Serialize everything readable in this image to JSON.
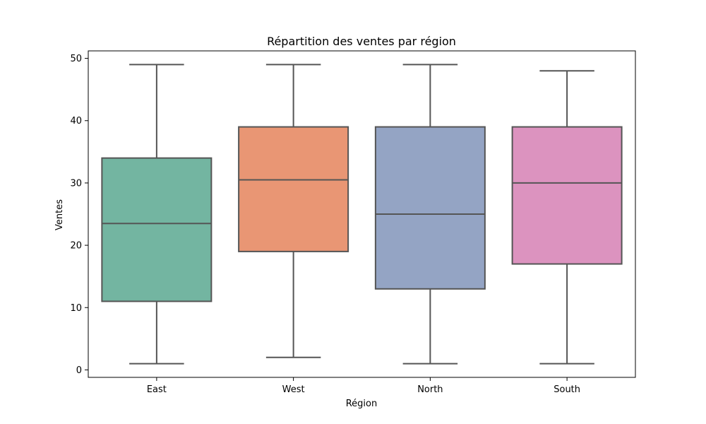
{
  "chart_data": {
    "type": "box",
    "title": "Répartition des ventes par région",
    "xlabel": "Région",
    "ylabel": "Ventes",
    "ylim": [
      -1.2,
      51.2
    ],
    "yticks": [
      0,
      10,
      20,
      30,
      40,
      50
    ],
    "grid": false,
    "legend": "none",
    "categories": [
      "East",
      "West",
      "North",
      "South"
    ],
    "boxes": [
      {
        "category": "East",
        "min": 1,
        "q1": 11,
        "median": 23.5,
        "q3": 34,
        "max": 49,
        "color": "#73b5a1"
      },
      {
        "category": "West",
        "min": 2,
        "q1": 19,
        "median": 30.5,
        "q3": 39,
        "max": 49,
        "color": "#e99674"
      },
      {
        "category": "North",
        "min": 1,
        "q1": 13,
        "median": 25,
        "q3": 39,
        "max": 49,
        "color": "#94a4c4"
      },
      {
        "category": "South",
        "min": 1,
        "q1": 17,
        "median": 30,
        "q3": 39,
        "max": 48,
        "color": "#dc93bf"
      }
    ],
    "line_color": "#555555"
  }
}
